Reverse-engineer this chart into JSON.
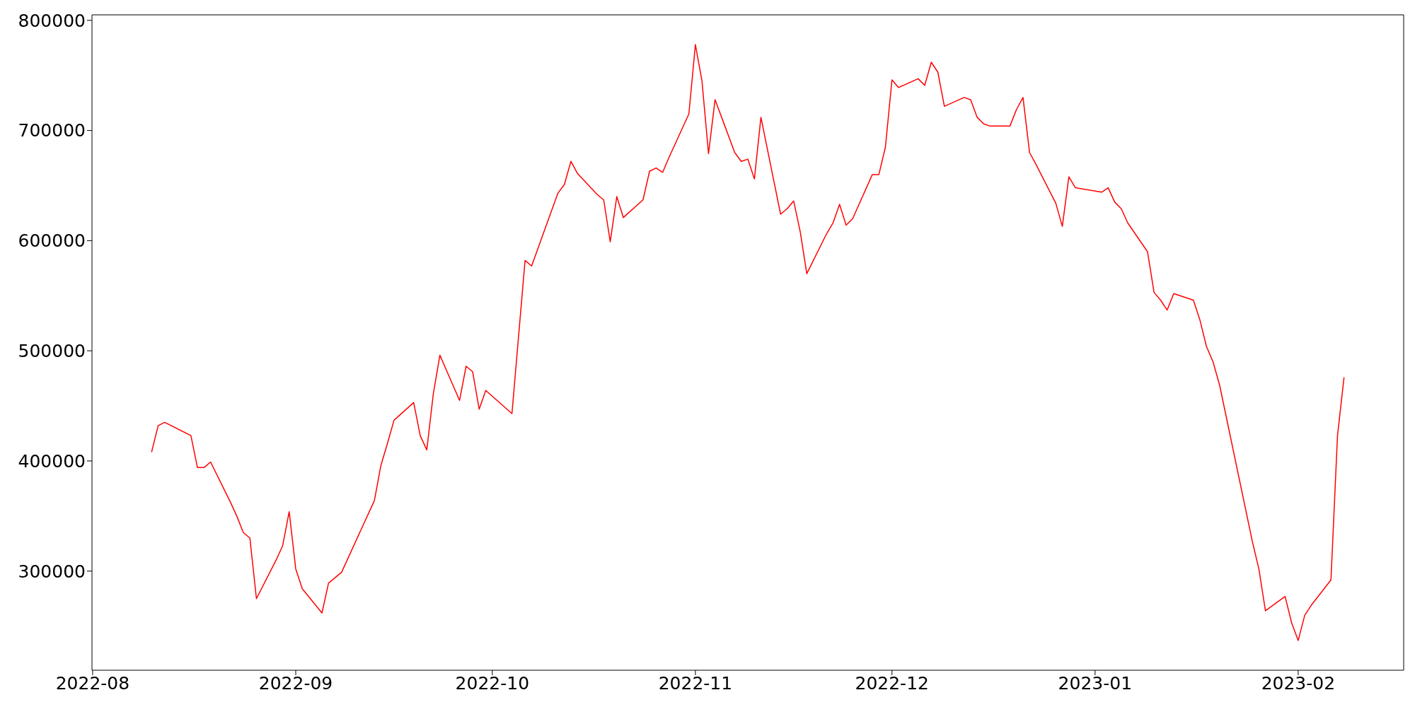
{
  "chart_data": {
    "type": "line",
    "x": [
      "2022-08-10",
      "2022-08-11",
      "2022-08-12",
      "2022-08-16",
      "2022-08-17",
      "2022-08-18",
      "2022-08-19",
      "2022-08-22",
      "2022-08-23",
      "2022-08-24",
      "2022-08-25",
      "2022-08-26",
      "2022-08-29",
      "2022-08-30",
      "2022-08-31",
      "2022-09-01",
      "2022-09-02",
      "2022-09-05",
      "2022-09-06",
      "2022-09-08",
      "2022-09-13",
      "2022-09-14",
      "2022-09-15",
      "2022-09-16",
      "2022-09-19",
      "2022-09-20",
      "2022-09-21",
      "2022-09-22",
      "2022-09-23",
      "2022-09-26",
      "2022-09-27",
      "2022-09-28",
      "2022-09-29",
      "2022-09-30",
      "2022-10-04",
      "2022-10-06",
      "2022-10-07",
      "2022-10-11",
      "2022-10-12",
      "2022-10-13",
      "2022-10-14",
      "2022-10-17",
      "2022-10-18",
      "2022-10-19",
      "2022-10-20",
      "2022-10-21",
      "2022-10-24",
      "2022-10-25",
      "2022-10-26",
      "2022-10-27",
      "2022-10-28",
      "2022-10-31",
      "2022-11-01",
      "2022-11-02",
      "2022-11-03",
      "2022-11-04",
      "2022-11-07",
      "2022-11-08",
      "2022-11-09",
      "2022-11-10",
      "2022-11-11",
      "2022-11-14",
      "2022-11-15",
      "2022-11-16",
      "2022-11-17",
      "2022-11-18",
      "2022-11-21",
      "2022-11-22",
      "2022-11-23",
      "2022-11-24",
      "2022-11-25",
      "2022-11-28",
      "2022-11-29",
      "2022-11-30",
      "2022-12-01",
      "2022-12-02",
      "2022-12-05",
      "2022-12-06",
      "2022-12-07",
      "2022-12-08",
      "2022-12-09",
      "2022-12-12",
      "2022-12-13",
      "2022-12-14",
      "2022-12-15",
      "2022-12-16",
      "2022-12-19",
      "2022-12-20",
      "2022-12-21",
      "2022-12-22",
      "2022-12-23",
      "2022-12-26",
      "2022-12-27",
      "2022-12-28",
      "2022-12-29",
      "2023-01-02",
      "2023-01-03",
      "2023-01-04",
      "2023-01-05",
      "2023-01-06",
      "2023-01-09",
      "2023-01-10",
      "2023-01-11",
      "2023-01-12",
      "2023-01-13",
      "2023-01-16",
      "2023-01-17",
      "2023-01-18",
      "2023-01-19",
      "2023-01-20",
      "2023-01-25",
      "2023-01-26",
      "2023-01-27",
      "2023-01-30",
      "2023-01-31",
      "2023-02-01",
      "2023-02-02",
      "2023-02-03",
      "2023-02-06",
      "2023-02-07",
      "2023-02-08"
    ],
    "series": [
      {
        "color": "#ff0000",
        "values": [
          408000,
          432000,
          435000,
          423000,
          394000,
          394000,
          399000,
          363000,
          350000,
          335000,
          330000,
          275000,
          310000,
          323000,
          354000,
          302000,
          284000,
          262000,
          289000,
          299000,
          364000,
          396000,
          416000,
          437000,
          453000,
          423000,
          410000,
          461000,
          496000,
          455000,
          486000,
          481000,
          447000,
          464000,
          443000,
          582000,
          577000,
          643000,
          651000,
          672000,
          661000,
          642000,
          637000,
          599000,
          640000,
          621000,
          637000,
          663000,
          666000,
          662000,
          676000,
          715000,
          778000,
          745000,
          679000,
          728000,
          680000,
          672000,
          674000,
          656000,
          712000,
          624000,
          629000,
          636000,
          608000,
          570000,
          606000,
          616000,
          633000,
          614000,
          620000,
          660000,
          660000,
          685000,
          746000,
          739000,
          747000,
          741000,
          762000,
          753000,
          722000,
          730000,
          728000,
          712000,
          706000,
          704000,
          704000,
          719000,
          730000,
          680000,
          669000,
          634000,
          613000,
          658000,
          648000,
          644000,
          648000,
          635000,
          629000,
          616000,
          590000,
          553000,
          546000,
          537000,
          552000,
          546000,
          528000,
          504000,
          490000,
          469000,
          327000,
          302000,
          264000,
          277000,
          253000,
          237000,
          260000,
          269000,
          292000,
          423000,
          476000
        ]
      }
    ],
    "xlim": [
      "2022-07-31T21:36",
      "2023-02-17T02:24"
    ],
    "xticks": [
      {
        "value": "2022-08-01",
        "label": "2022-08"
      },
      {
        "value": "2022-09-01",
        "label": "2022-09"
      },
      {
        "value": "2022-10-01",
        "label": "2022-10"
      },
      {
        "value": "2022-11-01",
        "label": "2022-11"
      },
      {
        "value": "2022-12-01",
        "label": "2022-12"
      },
      {
        "value": "2023-01-01",
        "label": "2023-01"
      },
      {
        "value": "2023-02-01",
        "label": "2023-02"
      }
    ],
    "ylim": [
      210000,
      805000
    ],
    "yticks": [
      300000,
      400000,
      500000,
      600000,
      700000,
      800000
    ],
    "grid": false,
    "legend": false,
    "marker": "none",
    "line_style": "solid"
  }
}
